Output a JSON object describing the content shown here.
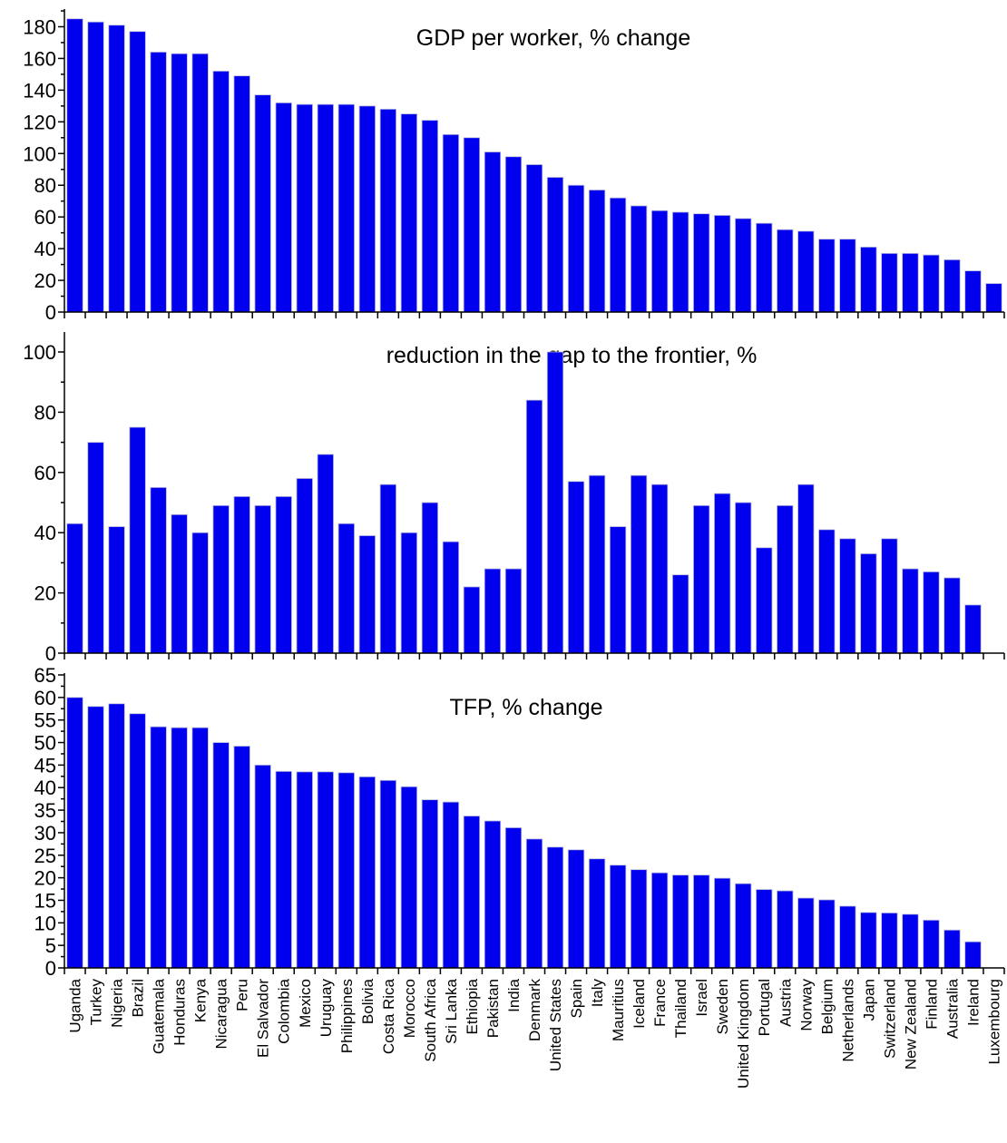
{
  "chart_data": [
    {
      "type": "bar",
      "title": "GDP per worker, % change",
      "xlabel": "",
      "ylabel": "",
      "ylim": [
        0,
        190
      ],
      "yticks": [
        0,
        20,
        40,
        60,
        80,
        100,
        120,
        140,
        160,
        180
      ],
      "grid": false,
      "categories": [
        "Uganda",
        "Turkey",
        "Nigeria",
        "Brazil",
        "Guatemala",
        "Honduras",
        "Kenya",
        "Nicaragua",
        "Peru",
        "El Salvador",
        "Colombia",
        "Mexico",
        "Uruguay",
        "Philippines",
        "Bolivia",
        "Costa Rica",
        "Morocco",
        "South Africa",
        "Sri Lanka",
        "Ethiopia",
        "Pakistan",
        "India",
        "Denmark",
        "United States",
        "Spain",
        "Italy",
        "Mauritius",
        "Iceland",
        "France",
        "Thailand",
        "Israel",
        "Sweden",
        "United Kingdom",
        "Portugal",
        "Austria",
        "Norway",
        "Belgium",
        "Netherlands",
        "Japan",
        "Switzerland",
        "New Zealand",
        "Finland",
        "Australia",
        "Ireland",
        "Luxembourg"
      ],
      "values": [
        185,
        183,
        181,
        177,
        164,
        163,
        163,
        152,
        149,
        137,
        132,
        131,
        131,
        131,
        130,
        128,
        125,
        121,
        112,
        110,
        101,
        98,
        93,
        85,
        80,
        77,
        72,
        67,
        64,
        63,
        62,
        61,
        59,
        56,
        52,
        51,
        46,
        46,
        41,
        37,
        37,
        36,
        33,
        26,
        18
      ]
    },
    {
      "type": "bar",
      "title": "reduction in the gap to the frontier, %",
      "xlabel": "",
      "ylabel": "",
      "ylim": [
        0,
        100
      ],
      "yticks": [
        0,
        20,
        40,
        60,
        80,
        100
      ],
      "grid": false,
      "categories": [
        "Uganda",
        "Turkey",
        "Nigeria",
        "Brazil",
        "Guatemala",
        "Honduras",
        "Kenya",
        "Nicaragua",
        "Peru",
        "El Salvador",
        "Colombia",
        "Mexico",
        "Uruguay",
        "Philippines",
        "Bolivia",
        "Costa Rica",
        "Morocco",
        "South Africa",
        "Sri Lanka",
        "Ethiopia",
        "Pakistan",
        "India",
        "Denmark",
        "United States",
        "Spain",
        "Italy",
        "Mauritius",
        "Iceland",
        "France",
        "Thailand",
        "Israel",
        "Sweden",
        "United Kingdom",
        "Portugal",
        "Austria",
        "Norway",
        "Belgium",
        "Netherlands",
        "Japan",
        "Switzerland",
        "New Zealand",
        "Finland",
        "Australia",
        "Ireland",
        "Luxembourg"
      ],
      "values": [
        43,
        70,
        42,
        75,
        55,
        46,
        40,
        49,
        52,
        49,
        52,
        58,
        66,
        43,
        39,
        56,
        40,
        50,
        37,
        22,
        28,
        28,
        84,
        100,
        57,
        59,
        42,
        59,
        56,
        26,
        49,
        53,
        50,
        35,
        49,
        56,
        41,
        38,
        33,
        38,
        28,
        27,
        25,
        16,
        0
      ]
    },
    {
      "type": "bar",
      "title": "TFP, % change",
      "xlabel": "",
      "ylabel": "",
      "ylim": [
        0,
        65
      ],
      "yticks": [
        0,
        5,
        10,
        15,
        20,
        25,
        30,
        35,
        40,
        45,
        50,
        55,
        60,
        65
      ],
      "grid": false,
      "categories": [
        "Uganda",
        "Turkey",
        "Nigeria",
        "Brazil",
        "Guatemala",
        "Honduras",
        "Kenya",
        "Nicaragua",
        "Peru",
        "El Salvador",
        "Colombia",
        "Mexico",
        "Uruguay",
        "Philippines",
        "Bolivia",
        "Costa Rica",
        "Morocco",
        "South Africa",
        "Sri Lanka",
        "Ethiopia",
        "Pakistan",
        "India",
        "Denmark",
        "United States",
        "Spain",
        "Italy",
        "Mauritius",
        "Iceland",
        "France",
        "Thailand",
        "Israel",
        "Sweden",
        "United Kingdom",
        "Portugal",
        "Austria",
        "Norway",
        "Belgium",
        "Netherlands",
        "Japan",
        "Switzerland",
        "New Zealand",
        "Finland",
        "Australia",
        "Ireland",
        "Luxembourg"
      ],
      "values": [
        60,
        58,
        58.6,
        56.4,
        53.5,
        53.3,
        53.3,
        50,
        49.2,
        45,
        43.6,
        43.5,
        43.5,
        43.3,
        42.4,
        41.6,
        40.2,
        37.3,
        36.8,
        33.7,
        32.6,
        31.1,
        28.6,
        26.8,
        26.2,
        24.2,
        22.8,
        21.8,
        21.1,
        20.6,
        20.6,
        19.9,
        18.7,
        17.4,
        17.1,
        15.5,
        15.1,
        13.7,
        12.3,
        12.2,
        11.9,
        10.6,
        8.4,
        5.8,
        0
      ]
    }
  ]
}
